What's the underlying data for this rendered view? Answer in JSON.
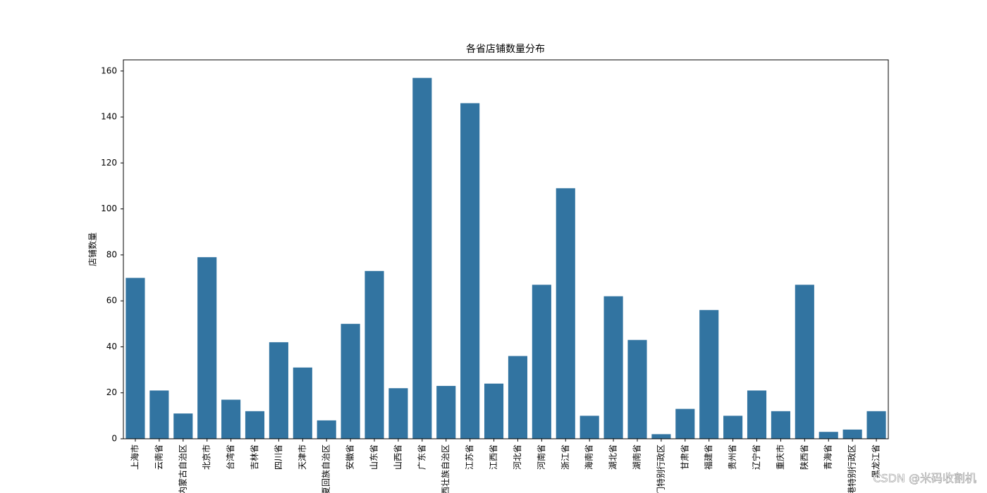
{
  "chart_data": {
    "type": "bar",
    "title": "各省店铺数量分布",
    "ylabel": "店铺数量",
    "categories": [
      "上海市",
      "云南省",
      "内蒙古自治区",
      "北京市",
      "台湾省",
      "吉林省",
      "四川省",
      "天津市",
      "宁夏回族自治区",
      "安徽省",
      "山东省",
      "山西省",
      "广东省",
      "广西壮族自治区",
      "江苏省",
      "江西省",
      "河北省",
      "河南省",
      "浙江省",
      "海南省",
      "湖北省",
      "湖南省",
      "澳门特别行政区",
      "甘肃省",
      "福建省",
      "贵州省",
      "辽宁省",
      "重庆市",
      "陕西省",
      "青海省",
      "香港特别行政区",
      "黑龙江省"
    ],
    "values": [
      70,
      21,
      11,
      79,
      17,
      12,
      42,
      31,
      8,
      50,
      73,
      22,
      157,
      23,
      146,
      24,
      36,
      67,
      109,
      10,
      62,
      43,
      2,
      13,
      56,
      10,
      21,
      12,
      67,
      3,
      4,
      12
    ],
    "color": "#3274a1",
    "ylim": [
      0,
      164.85
    ],
    "yticks": [
      0,
      20,
      40,
      60,
      80,
      100,
      120,
      140,
      160
    ],
    "grid": false,
    "watermark": "CSDN @米码收割机"
  }
}
